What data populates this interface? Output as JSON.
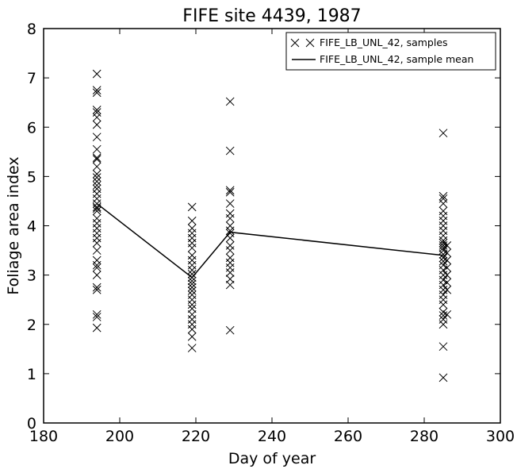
{
  "chart_data": {
    "type": "scatter",
    "title": "FIFE site 4439, 1987",
    "xlabel": "Day of year",
    "ylabel": "Foliage area index",
    "xlim": [
      180,
      300
    ],
    "ylim": [
      0,
      8
    ],
    "xticks": [
      180,
      200,
      220,
      240,
      260,
      280,
      300
    ],
    "yticks": [
      0,
      1,
      2,
      3,
      4,
      5,
      6,
      7,
      8
    ],
    "grid": false,
    "legend_position": "top-right",
    "series": [
      {
        "name": "FIFE_LB_UNL_42, samples",
        "kind": "scatter",
        "marker": "x",
        "color": "#000000",
        "points": [
          {
            "x": 194,
            "y": 7.08
          },
          {
            "x": 194,
            "y": 6.75
          },
          {
            "x": 194,
            "y": 6.7
          },
          {
            "x": 194,
            "y": 6.35
          },
          {
            "x": 194,
            "y": 6.3
          },
          {
            "x": 194,
            "y": 6.2
          },
          {
            "x": 194,
            "y": 6.05
          },
          {
            "x": 194,
            "y": 5.8
          },
          {
            "x": 194,
            "y": 5.55
          },
          {
            "x": 194,
            "y": 5.38
          },
          {
            "x": 194,
            "y": 5.35
          },
          {
            "x": 194,
            "y": 5.2
          },
          {
            "x": 194,
            "y": 5.05
          },
          {
            "x": 194,
            "y": 4.98
          },
          {
            "x": 194,
            "y": 4.9
          },
          {
            "x": 194,
            "y": 4.82
          },
          {
            "x": 194,
            "y": 4.75
          },
          {
            "x": 194,
            "y": 4.65
          },
          {
            "x": 194,
            "y": 4.55
          },
          {
            "x": 194,
            "y": 4.45
          },
          {
            "x": 194,
            "y": 4.38
          },
          {
            "x": 194,
            "y": 4.35
          },
          {
            "x": 194,
            "y": 4.3
          },
          {
            "x": 194,
            "y": 4.15
          },
          {
            "x": 194,
            "y": 4.05
          },
          {
            "x": 194,
            "y": 3.95
          },
          {
            "x": 194,
            "y": 3.85
          },
          {
            "x": 194,
            "y": 3.75
          },
          {
            "x": 194,
            "y": 3.65
          },
          {
            "x": 194,
            "y": 3.5
          },
          {
            "x": 194,
            "y": 3.3
          },
          {
            "x": 194,
            "y": 3.2
          },
          {
            "x": 194,
            "y": 3.15
          },
          {
            "x": 194,
            "y": 3.0
          },
          {
            "x": 194,
            "y": 2.75
          },
          {
            "x": 194,
            "y": 2.7
          },
          {
            "x": 194,
            "y": 2.2
          },
          {
            "x": 194,
            "y": 2.15
          },
          {
            "x": 194,
            "y": 1.93
          },
          {
            "x": 219,
            "y": 4.38
          },
          {
            "x": 219,
            "y": 4.1
          },
          {
            "x": 219,
            "y": 3.95
          },
          {
            "x": 219,
            "y": 3.85
          },
          {
            "x": 219,
            "y": 3.75
          },
          {
            "x": 219,
            "y": 3.65
          },
          {
            "x": 219,
            "y": 3.55
          },
          {
            "x": 219,
            "y": 3.4
          },
          {
            "x": 219,
            "y": 3.3
          },
          {
            "x": 219,
            "y": 3.2
          },
          {
            "x": 219,
            "y": 3.1
          },
          {
            "x": 219,
            "y": 3.02
          },
          {
            "x": 219,
            "y": 2.95
          },
          {
            "x": 219,
            "y": 2.88
          },
          {
            "x": 219,
            "y": 2.82
          },
          {
            "x": 219,
            "y": 2.75
          },
          {
            "x": 219,
            "y": 2.68
          },
          {
            "x": 219,
            "y": 2.6
          },
          {
            "x": 219,
            "y": 2.5
          },
          {
            "x": 219,
            "y": 2.4
          },
          {
            "x": 219,
            "y": 2.32
          },
          {
            "x": 219,
            "y": 2.2
          },
          {
            "x": 219,
            "y": 2.1
          },
          {
            "x": 219,
            "y": 2.0
          },
          {
            "x": 219,
            "y": 1.9
          },
          {
            "x": 219,
            "y": 1.75
          },
          {
            "x": 219,
            "y": 1.52
          },
          {
            "x": 229,
            "y": 6.52
          },
          {
            "x": 229,
            "y": 5.52
          },
          {
            "x": 229,
            "y": 4.72
          },
          {
            "x": 229,
            "y": 4.68
          },
          {
            "x": 229,
            "y": 4.45
          },
          {
            "x": 229,
            "y": 4.25
          },
          {
            "x": 229,
            "y": 4.15
          },
          {
            "x": 229,
            "y": 4.0
          },
          {
            "x": 229,
            "y": 3.9
          },
          {
            "x": 229,
            "y": 3.85
          },
          {
            "x": 229,
            "y": 3.75
          },
          {
            "x": 229,
            "y": 3.6
          },
          {
            "x": 229,
            "y": 3.5
          },
          {
            "x": 229,
            "y": 3.35
          },
          {
            "x": 229,
            "y": 3.25
          },
          {
            "x": 229,
            "y": 3.15
          },
          {
            "x": 229,
            "y": 3.05
          },
          {
            "x": 229,
            "y": 2.92
          },
          {
            "x": 229,
            "y": 2.8
          },
          {
            "x": 229,
            "y": 1.88
          },
          {
            "x": 285,
            "y": 5.88
          },
          {
            "x": 285,
            "y": 4.6
          },
          {
            "x": 285,
            "y": 4.55
          },
          {
            "x": 285,
            "y": 4.45
          },
          {
            "x": 285,
            "y": 4.3
          },
          {
            "x": 285,
            "y": 4.2
          },
          {
            "x": 285,
            "y": 4.1
          },
          {
            "x": 285,
            "y": 4.0
          },
          {
            "x": 285,
            "y": 3.9
          },
          {
            "x": 285,
            "y": 3.8
          },
          {
            "x": 285,
            "y": 3.7
          },
          {
            "x": 285,
            "y": 3.65
          },
          {
            "x": 285,
            "y": 3.6
          },
          {
            "x": 285,
            "y": 3.55
          },
          {
            "x": 285,
            "y": 3.5
          },
          {
            "x": 285,
            "y": 3.42
          },
          {
            "x": 285,
            "y": 3.35
          },
          {
            "x": 285,
            "y": 3.28
          },
          {
            "x": 285,
            "y": 3.2
          },
          {
            "x": 285,
            "y": 3.1
          },
          {
            "x": 285,
            "y": 3.0
          },
          {
            "x": 285,
            "y": 2.9
          },
          {
            "x": 285,
            "y": 2.8
          },
          {
            "x": 285,
            "y": 2.7
          },
          {
            "x": 285,
            "y": 2.6
          },
          {
            "x": 285,
            "y": 2.5
          },
          {
            "x": 285,
            "y": 2.4
          },
          {
            "x": 285,
            "y": 2.25
          },
          {
            "x": 285,
            "y": 2.18
          },
          {
            "x": 285,
            "y": 2.1
          },
          {
            "x": 285,
            "y": 2.0
          },
          {
            "x": 285,
            "y": 1.55
          },
          {
            "x": 285,
            "y": 0.92
          },
          {
            "x": 286,
            "y": 3.6
          },
          {
            "x": 286,
            "y": 3.45
          },
          {
            "x": 286,
            "y": 3.3
          },
          {
            "x": 286,
            "y": 3.15
          },
          {
            "x": 286,
            "y": 3.0
          },
          {
            "x": 286,
            "y": 2.85
          },
          {
            "x": 286,
            "y": 2.7
          },
          {
            "x": 286,
            "y": 2.2
          }
        ]
      },
      {
        "name": "FIFE_LB_UNL_42, sample mean",
        "kind": "line",
        "color": "#000000",
        "points": [
          {
            "x": 194,
            "y": 4.45
          },
          {
            "x": 219,
            "y": 2.95
          },
          {
            "x": 229,
            "y": 3.87
          },
          {
            "x": 285,
            "y": 3.4
          }
        ]
      }
    ]
  }
}
